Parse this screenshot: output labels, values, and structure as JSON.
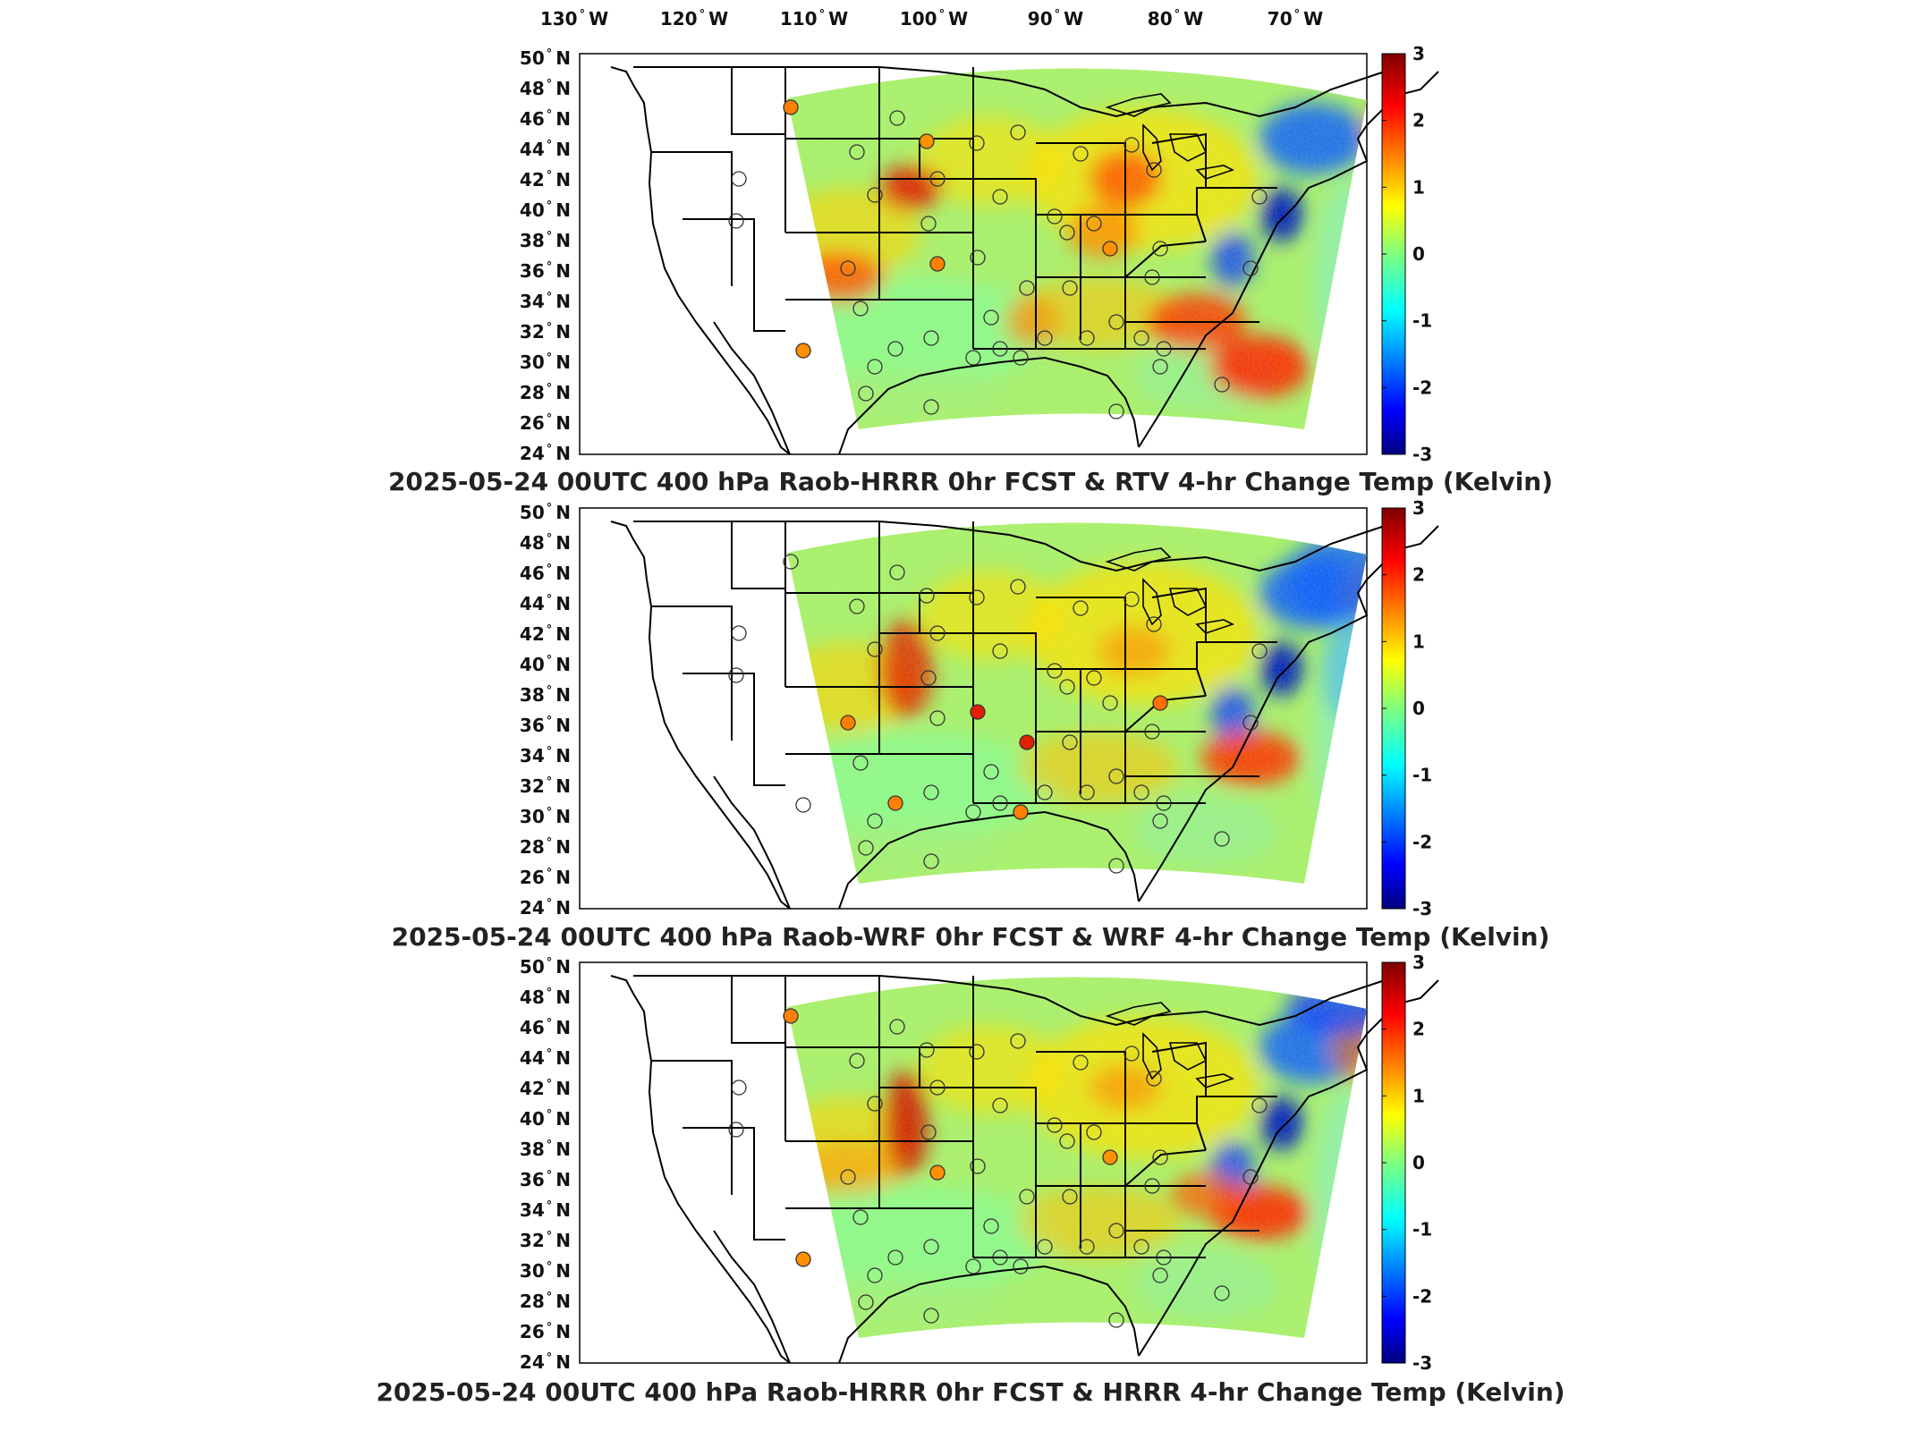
{
  "figure": {
    "lon_labels": [
      "130",
      "120",
      "110",
      "100",
      "90",
      "80",
      "70"
    ],
    "lon_suffix": "W",
    "lat_labels": [
      "50",
      "48",
      "46",
      "44",
      "42",
      "40",
      "38",
      "36",
      "34",
      "32",
      "30",
      "28",
      "26",
      "24"
    ],
    "lat_suffix": "N",
    "colorbar_ticks": [
      "3",
      "2",
      "1",
      "0",
      "-1",
      "-2",
      "-3"
    ],
    "colormap": "jet",
    "colorbar_range": [
      -3,
      3
    ]
  },
  "panels": [
    {
      "title": "2025-05-24 00UTC 400 hPa Raob-HRRR 0hr FCST & RTV 4-hr Change Temp (Kelvin)",
      "field_hint": "rtv"
    },
    {
      "title": "2025-05-24 00UTC 400 hPa Raob-WRF 0hr FCST & WRF 4-hr Change Temp (Kelvin)",
      "field_hint": "wrf"
    },
    {
      "title": "2025-05-24 00UTC 400 hPa Raob-HRRR 0hr FCST & HRRR 4-hr Change Temp (Kelvin)",
      "field_hint": "hrrr"
    }
  ]
}
